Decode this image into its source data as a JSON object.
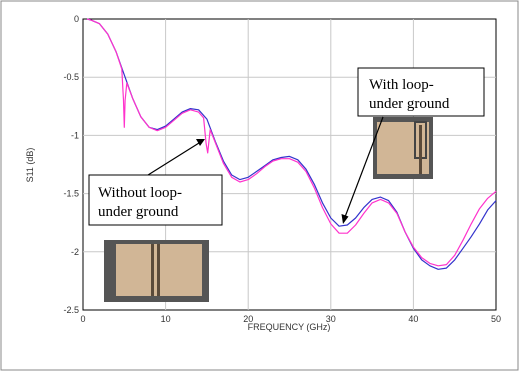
{
  "chart_data": {
    "type": "line",
    "title": "",
    "xlabel": "FREQUENCY (GHz)",
    "ylabel": "S11 (dB)",
    "xlim": [
      0,
      50
    ],
    "ylim": [
      -2.5,
      0
    ],
    "xticks": [
      0,
      10,
      20,
      30,
      40,
      50
    ],
    "yticks": [
      0,
      -0.5,
      -1,
      -1.5,
      -2,
      -2.5
    ],
    "xtick_labels": [
      "0",
      "10",
      "20",
      "30",
      "40",
      "50"
    ],
    "ytick_labels": [
      "0",
      "-0.5",
      "-1",
      "-1.5",
      "-2",
      "-2.5"
    ],
    "grid": true,
    "series": [
      {
        "color": "#3333cc",
        "x": [
          0.5,
          1,
          2,
          3,
          4,
          5,
          6,
          7,
          8,
          9,
          10,
          11,
          12,
          13,
          14,
          15,
          16,
          17,
          18,
          19,
          20,
          21,
          22,
          23,
          24,
          25,
          26,
          27,
          28,
          29,
          30,
          31,
          32,
          33,
          34,
          35,
          36,
          37,
          38,
          39,
          40,
          41,
          42,
          43,
          44,
          45,
          46,
          47,
          48,
          49,
          50
        ],
        "y": [
          0,
          -0.01,
          -0.04,
          -0.13,
          -0.28,
          -0.48,
          -0.68,
          -0.84,
          -0.93,
          -0.95,
          -0.92,
          -0.86,
          -0.8,
          -0.77,
          -0.78,
          -0.86,
          -1.05,
          -1.22,
          -1.34,
          -1.38,
          -1.36,
          -1.31,
          -1.26,
          -1.21,
          -1.19,
          -1.18,
          -1.21,
          -1.29,
          -1.42,
          -1.58,
          -1.71,
          -1.78,
          -1.77,
          -1.71,
          -1.62,
          -1.55,
          -1.53,
          -1.56,
          -1.66,
          -1.83,
          -1.97,
          -2.07,
          -2.12,
          -2.15,
          -2.14,
          -2.07,
          -1.97,
          -1.87,
          -1.76,
          -1.64,
          -1.56
        ]
      },
      {
        "color": "#ff33cc",
        "x": [
          0.5,
          1,
          2,
          3,
          4,
          4.7,
          4.9,
          5.0,
          5.1,
          5.3,
          6,
          7,
          8,
          9,
          10,
          11,
          12,
          13,
          14,
          14.6,
          14.9,
          15.1,
          15.4,
          16,
          17,
          18,
          19,
          20,
          21,
          22,
          23,
          24,
          25,
          26,
          27,
          28,
          29,
          30,
          31,
          32,
          33,
          34,
          35,
          36,
          37,
          38,
          39,
          40,
          41,
          42,
          43,
          44,
          45,
          46,
          47,
          48,
          49,
          50
        ],
        "y": [
          0,
          -0.01,
          -0.04,
          -0.13,
          -0.28,
          -0.43,
          -0.7,
          -0.93,
          -0.7,
          -0.55,
          -0.68,
          -0.84,
          -0.93,
          -0.96,
          -0.93,
          -0.87,
          -0.81,
          -0.78,
          -0.8,
          -0.85,
          -1.07,
          -1.15,
          -0.95,
          -1.06,
          -1.24,
          -1.36,
          -1.4,
          -1.38,
          -1.33,
          -1.27,
          -1.22,
          -1.2,
          -1.2,
          -1.23,
          -1.31,
          -1.45,
          -1.62,
          -1.76,
          -1.84,
          -1.84,
          -1.77,
          -1.67,
          -1.58,
          -1.55,
          -1.58,
          -1.67,
          -1.83,
          -1.96,
          -2.05,
          -2.1,
          -2.12,
          -2.11,
          -2.03,
          -1.9,
          -1.76,
          -1.63,
          -1.54,
          -1.48
        ]
      }
    ],
    "annotations": [
      {
        "lines": [
          "With loop-",
          "under ground"
        ]
      },
      {
        "lines": [
          "Without loop-",
          "under ground"
        ]
      }
    ]
  }
}
